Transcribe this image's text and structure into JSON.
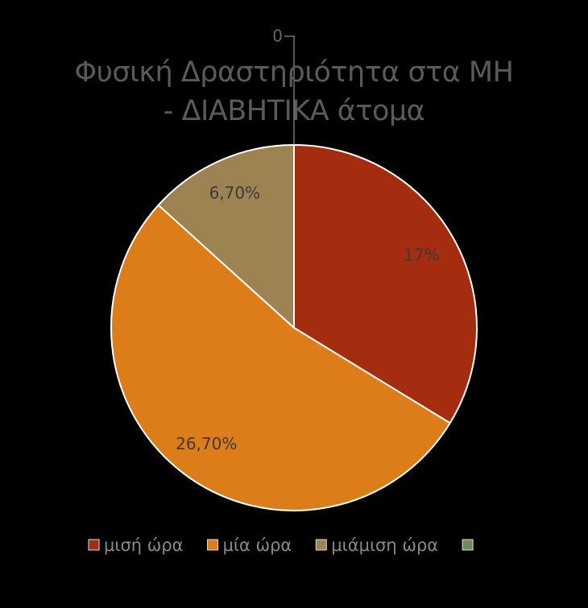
{
  "chart_data": {
    "type": "pie",
    "title": "Φυσική Δραστηριότητα στα ΜΗ - ΔΙΑΒΗΤΙΚΑ άτομα",
    "categories": [
      "μισή ώρα",
      "μία ώρα",
      "μιάμιση ώρα",
      null
    ],
    "values": [
      17,
      26.7,
      6.7,
      0
    ],
    "value_labels": [
      "17%",
      "26,70%",
      "6,70%",
      "0"
    ],
    "colors": [
      "#a42d10",
      "#dd7d19",
      "#9e8352",
      "#6f8a5c"
    ],
    "legend": "bottom"
  }
}
